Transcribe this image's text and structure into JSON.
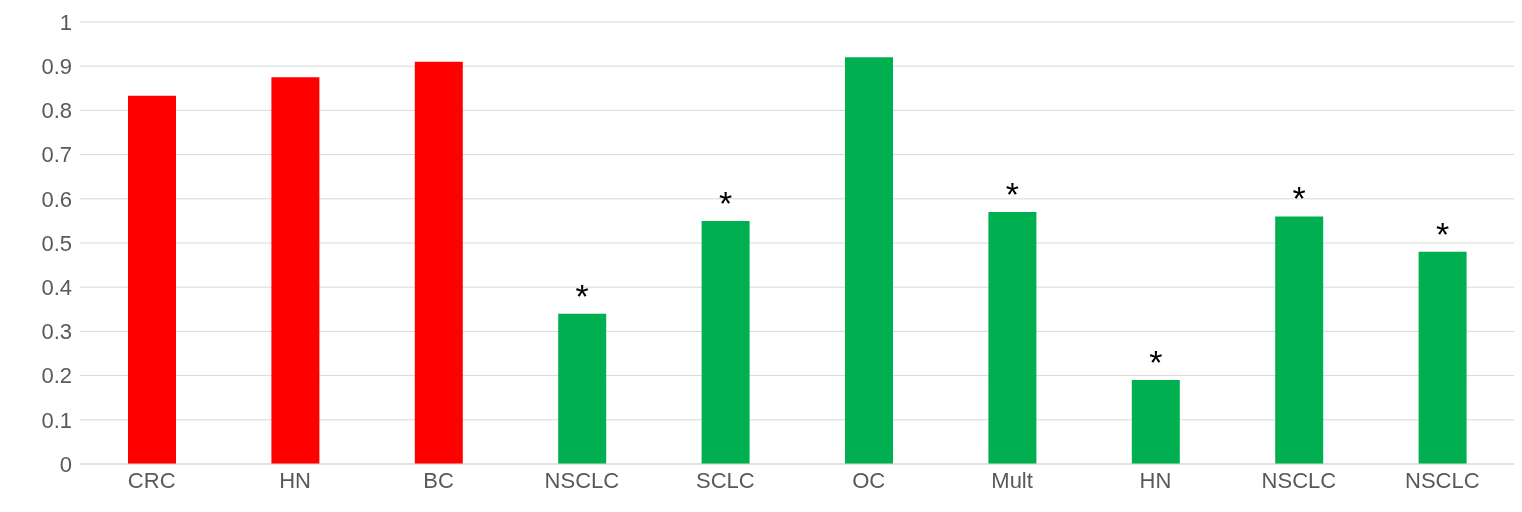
{
  "chart_data": {
    "type": "bar",
    "categories": [
      "CRC",
      "HN",
      "BC",
      "NSCLC",
      "SCLC",
      "OC",
      "Mult",
      "HN",
      "NSCLC",
      "NSCLC"
    ],
    "values": [
      0.833,
      0.875,
      0.91,
      0.34,
      0.55,
      0.92,
      0.57,
      0.19,
      0.56,
      0.48
    ],
    "colors": [
      "#ff0000",
      "#ff0000",
      "#ff0000",
      "#00b050",
      "#00b050",
      "#00b050",
      "#00b050",
      "#00b050",
      "#00b050",
      "#00b050"
    ],
    "value_labels": [
      null,
      null,
      null,
      "*",
      "*",
      null,
      "*",
      "*",
      "*",
      "*"
    ],
    "ylim": [
      0,
      1
    ],
    "yticks": [
      0,
      0.1,
      0.2,
      0.3,
      0.4,
      0.5,
      0.6,
      0.7,
      0.8,
      0.9,
      1
    ],
    "grid": "y"
  }
}
